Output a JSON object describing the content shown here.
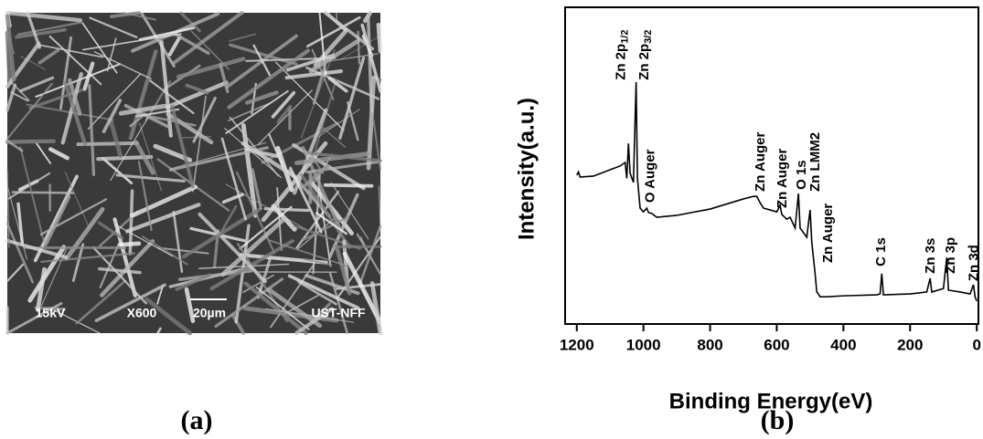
{
  "sem_image": {
    "labels": [
      "15kV",
      "X600",
      "20µm",
      "UST-NFF"
    ]
  },
  "panel_labels": [
    "(a)",
    "(b)"
  ],
  "chart_data": {
    "type": "line",
    "x_label": "Binding Energy(eV)",
    "y_label": "Intensity(a.u.)",
    "xlim": [
      1235,
      -5
    ],
    "xticks": [
      1200,
      1000,
      800,
      600,
      400,
      200,
      0
    ],
    "ylim": [
      0,
      100
    ],
    "series": [
      {
        "color": "#000000",
        "x": [
          1200,
          1195,
          1190,
          1150,
          1100,
          1070,
          1055,
          1050,
          1045,
          1040,
          1030,
          1022,
          1018,
          1010,
          1000,
          990,
          985,
          975,
          960,
          900,
          800,
          700,
          670,
          660,
          650,
          640,
          620,
          600,
          590,
          585,
          570,
          560,
          545,
          535,
          530,
          510,
          500,
          495,
          485,
          480,
          475,
          470,
          450,
          400,
          300,
          290,
          285,
          280,
          200,
          150,
          140,
          135,
          100,
          90,
          85,
          50,
          20,
          10,
          5,
          0
        ],
        "values": [
          47,
          48,
          46.4,
          46.7,
          48.7,
          49.9,
          51,
          46,
          57,
          47.6,
          44.7,
          76.4,
          46,
          36.6,
          35.4,
          36.6,
          35.2,
          34.9,
          33.7,
          34.3,
          36.3,
          39.5,
          40.3,
          40.3,
          38.3,
          36.6,
          36,
          35.4,
          37.5,
          34.6,
          33.1,
          33.7,
          30.3,
          41.2,
          30.3,
          27.4,
          36,
          25.9,
          15.9,
          10.1,
          9.5,
          8.6,
          8.6,
          8.9,
          9.2,
          9.5,
          15.9,
          9.2,
          9.5,
          10.1,
          14.4,
          10.1,
          11.2,
          21,
          10.7,
          10.1,
          9.5,
          12.4,
          8.6,
          7.2
        ]
      }
    ],
    "annotations": [
      {
        "text": "Zn 2p",
        "subscript": "1/2",
        "x": 1066,
        "y": 77
      },
      {
        "text": "Zn 2p",
        "subscript": "3/2",
        "x": 997,
        "y": 77
      },
      {
        "text": "O Auger",
        "x": 978,
        "y": 38.3
      },
      {
        "text": "Zn Auger",
        "x": 648,
        "y": 41.8
      },
      {
        "text": "Zn Auger",
        "x": 582,
        "y": 36.6
      },
      {
        "text": "O 1s",
        "x": 525,
        "y": 42.4
      },
      {
        "text": "Zn LMM2",
        "x": 484,
        "y": 41.8
      },
      {
        "text": "Zn Auger",
        "x": 445,
        "y": 19.3
      },
      {
        "text": "C 1s",
        "x": 286,
        "y": 18.2
      },
      {
        "text": "Zn 3s",
        "x": 137,
        "y": 15.9
      },
      {
        "text": "Zn 3p",
        "x": 77,
        "y": 15.9
      },
      {
        "text": "Zn 3d",
        "x": 8,
        "y": 13.5
      }
    ]
  }
}
